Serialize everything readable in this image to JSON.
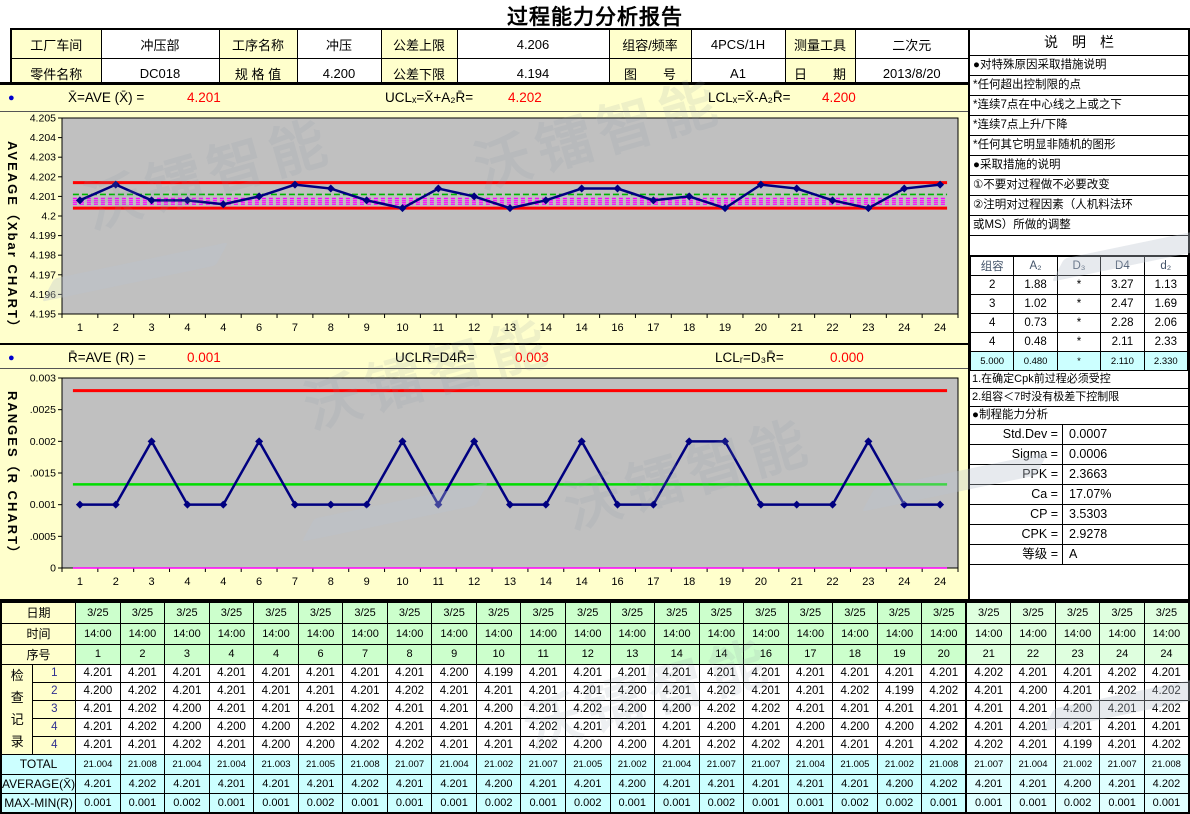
{
  "header": {
    "title": "过程能力分析报告"
  },
  "info_table": {
    "rows": [
      [
        {
          "label": "工厂车间"
        },
        {
          "value": "冲压部"
        },
        {
          "label": "工序名称"
        },
        {
          "value": "冲压"
        },
        {
          "label": "公差上限"
        },
        {
          "value": "4.206"
        },
        {
          "label": "组容/频率"
        },
        {
          "value": "4PCS/1H"
        },
        {
          "label": "测量工具"
        },
        {
          "value": "二次元"
        }
      ],
      [
        {
          "label": "零件名称"
        },
        {
          "value": "DC018"
        },
        {
          "label": "规 格 值"
        },
        {
          "value": "4.200"
        },
        {
          "label": "公差下限"
        },
        {
          "value": "4.194"
        },
        {
          "label": "图　　号"
        },
        {
          "value": "A1"
        },
        {
          "label": "日　　期"
        },
        {
          "value": "2013/8/20"
        }
      ]
    ]
  },
  "xbar_section": {
    "stats": [
      {
        "label": "X̄=AVE (X̄) =",
        "value": "4.201"
      },
      {
        "label": "UCLₓ=X̄+A₂R̄=",
        "value": "4.202"
      },
      {
        "label": "LCLₓ=X̄-A₂R̄=",
        "value": "4.200"
      }
    ]
  },
  "r_section": {
    "stats": [
      {
        "label": "R̄=AVE (R) =",
        "value": "0.001"
      },
      {
        "label": "UCLR=D4R̄=",
        "value": "0.003"
      },
      {
        "label": "LCLᵣ=D₃R̄=",
        "value": "0.000"
      }
    ]
  },
  "chart_data": [
    {
      "type": "line",
      "name": "xbar-control-chart",
      "ylabel": "AVEAGE（Xbar CHART）",
      "x_labels": [
        "1",
        "2",
        "3",
        "4",
        "4",
        "6",
        "7",
        "8",
        "9",
        "10",
        "11",
        "12",
        "13",
        "14",
        "14",
        "16",
        "17",
        "18",
        "19",
        "20",
        "21",
        "22",
        "23",
        "24",
        "24"
      ],
      "values": [
        4.2008,
        4.2016,
        4.2008,
        4.2008,
        4.2006,
        4.201,
        4.2016,
        4.2014,
        4.2008,
        4.2004,
        4.2014,
        4.201,
        4.2004,
        4.2008,
        4.2014,
        4.2014,
        4.2008,
        4.201,
        4.2004,
        4.2016,
        4.2014,
        4.2008,
        4.2004,
        4.2014,
        4.2016
      ],
      "ucl": 4.2017,
      "lcl": 4.2004,
      "center": 4.2011,
      "zone_lines": [
        4.2009,
        4.2008,
        4.2007,
        4.2006
      ],
      "center_dashed": true,
      "ylim": [
        4.195,
        4.205
      ],
      "y_ticks": [
        "4.205",
        "4.204",
        "4.203",
        "4.202",
        "4.201",
        "4.2",
        "4.199",
        "4.198",
        "4.197",
        "4.196",
        "4.195"
      ],
      "colors": {
        "series": "#000080",
        "limit": "#ff0000",
        "center": "#00b400",
        "zone": "#ff00ff",
        "plot_bg": "#c0c0c0"
      }
    },
    {
      "type": "line",
      "name": "r-control-chart",
      "ylabel": "RANGES（R CHART）",
      "x_labels": [
        "1",
        "2",
        "3",
        "4",
        "4",
        "6",
        "7",
        "8",
        "9",
        "10",
        "11",
        "12",
        "13",
        "14",
        "14",
        "16",
        "17",
        "18",
        "19",
        "20",
        "21",
        "22",
        "23",
        "24",
        "24"
      ],
      "values": [
        0.001,
        0.001,
        0.002,
        0.001,
        0.001,
        0.002,
        0.001,
        0.001,
        0.001,
        0.002,
        0.001,
        0.002,
        0.001,
        0.001,
        0.002,
        0.001,
        0.001,
        0.002,
        0.002,
        0.001,
        0.001,
        0.001,
        0.002,
        0.001,
        0.001
      ],
      "ucl": 0.0028,
      "lcl": 0,
      "center": 0.00132,
      "zone_lines": [],
      "center_dashed": false,
      "lcl_color": "#ff00ff",
      "ylim": [
        0,
        0.003
      ],
      "y_ticks": [
        "0.003",
        "0.0025",
        "0.002",
        "0.0015",
        "0.001",
        "0.0005",
        "0"
      ],
      "colors": {
        "series": "#000080",
        "limit": "#ff0000",
        "center": "#00dd00",
        "zone": "#ff00ff",
        "plot_bg": "#c0c0c0"
      }
    }
  ],
  "sidebar": {
    "header": "说　明　栏",
    "notes": [
      "●对特殊原因采取措施说明",
      "*任何超出控制限的点",
      "*连续7点在中心线之上或之下",
      "*连续7点上升/下降",
      "*任何其它明显非随机的图形",
      "●采取措施的说明",
      "①不要对过程做不必要改变",
      "②注明对过程因素（人机料法环",
      "或MS）所做的调整",
      ""
    ],
    "constants": {
      "headers": [
        "组容",
        "A₂",
        "D₃",
        "D4",
        "d₂"
      ],
      "rows": [
        [
          "2",
          "1.88",
          "*",
          "3.27",
          "1.13"
        ],
        [
          "3",
          "1.02",
          "*",
          "2.47",
          "1.69"
        ],
        [
          "4",
          "0.73",
          "*",
          "2.28",
          "2.06"
        ],
        [
          "4",
          "0.48",
          "*",
          "2.11",
          "2.33"
        ],
        [
          "5.000",
          "0.480",
          "*",
          "2.110",
          "2.330"
        ]
      ],
      "highlight_last_row": true
    },
    "cpk_notes": [
      "1.在确定Cpk前过程必须受控",
      "2.组容＜7时没有极差下控制限"
    ],
    "capability_header": "●制程能力分析",
    "capability": [
      {
        "label": "Std.Dev =",
        "value": "0.0007"
      },
      {
        "label": "Sigma =",
        "value": "0.0006"
      },
      {
        "label": "PPK =",
        "value": "2.3663"
      },
      {
        "label": "Ca =",
        "value": "17.07%"
      },
      {
        "label": "CP =",
        "value": "3.5303"
      },
      {
        "label": "CPK =",
        "value": "2.9278"
      },
      {
        "label": "等级 =",
        "value": "A"
      }
    ]
  },
  "bottom_table": {
    "row_labels": {
      "date": "日期",
      "time": "时间",
      "seq": "序号",
      "total": "TOTAL",
      "average": "AVERAGE(X̄)",
      "range": "MAX-MIN(R)",
      "record": "检查记录",
      "record_rows": [
        "1",
        "2",
        "3",
        "4",
        "4"
      ]
    },
    "dates": [
      "3/25",
      "3/25",
      "3/25",
      "3/25",
      "3/25",
      "3/25",
      "3/25",
      "3/25",
      "3/25",
      "3/25",
      "3/25",
      "3/25",
      "3/25",
      "3/25",
      "3/25",
      "3/25",
      "3/25",
      "3/25",
      "3/25",
      "3/25",
      "3/25",
      "3/25",
      "3/25",
      "3/25",
      "3/25"
    ],
    "times": [
      "14:00",
      "14:00",
      "14:00",
      "14:00",
      "14:00",
      "14:00",
      "14:00",
      "14:00",
      "14:00",
      "14:00",
      "14:00",
      "14:00",
      "14:00",
      "14:00",
      "14:00",
      "14:00",
      "14:00",
      "14:00",
      "14:00",
      "14:00",
      "14:00",
      "14:00",
      "14:00",
      "14:00",
      "14:00"
    ],
    "seq": [
      "1",
      "2",
      "3",
      "4",
      "4",
      "6",
      "7",
      "8",
      "9",
      "10",
      "11",
      "12",
      "13",
      "14",
      "14",
      "16",
      "17",
      "18",
      "19",
      "20",
      "21",
      "22",
      "23",
      "24",
      "24"
    ],
    "measurements": [
      [
        "4.201",
        "4.201",
        "4.201",
        "4.201",
        "4.201",
        "4.201",
        "4.201",
        "4.201",
        "4.200",
        "4.199",
        "4.201",
        "4.201",
        "4.201",
        "4.201",
        "4.201",
        "4.201",
        "4.201",
        "4.201",
        "4.201",
        "4.201",
        "4.202",
        "4.201",
        "4.201",
        "4.202",
        "4.201"
      ],
      [
        "4.200",
        "4.202",
        "4.201",
        "4.201",
        "4.201",
        "4.201",
        "4.201",
        "4.202",
        "4.201",
        "4.201",
        "4.201",
        "4.201",
        "4.200",
        "4.201",
        "4.202",
        "4.201",
        "4.201",
        "4.202",
        "4.199",
        "4.202",
        "4.201",
        "4.200",
        "4.201",
        "4.202",
        "4.202"
      ],
      [
        "4.201",
        "4.202",
        "4.200",
        "4.201",
        "4.201",
        "4.201",
        "4.202",
        "4.201",
        "4.201",
        "4.200",
        "4.201",
        "4.202",
        "4.200",
        "4.200",
        "4.202",
        "4.202",
        "4.201",
        "4.201",
        "4.201",
        "4.201",
        "4.201",
        "4.201",
        "4.200",
        "4.201",
        "4.202"
      ],
      [
        "4.201",
        "4.202",
        "4.200",
        "4.200",
        "4.200",
        "4.202",
        "4.202",
        "4.201",
        "4.201",
        "4.201",
        "4.202",
        "4.201",
        "4.201",
        "4.201",
        "4.200",
        "4.201",
        "4.200",
        "4.200",
        "4.200",
        "4.202",
        "4.201",
        "4.201",
        "4.201",
        "4.201",
        "4.201"
      ],
      [
        "4.201",
        "4.201",
        "4.202",
        "4.201",
        "4.200",
        "4.200",
        "4.202",
        "4.202",
        "4.201",
        "4.201",
        "4.202",
        "4.200",
        "4.200",
        "4.201",
        "4.202",
        "4.202",
        "4.201",
        "4.201",
        "4.201",
        "4.202",
        "4.202",
        "4.201",
        "4.199",
        "4.201",
        "4.202"
      ]
    ],
    "totals": [
      "21.004",
      "21.008",
      "21.004",
      "21.004",
      "21.003",
      "21.005",
      "21.008",
      "21.007",
      "21.004",
      "21.002",
      "21.007",
      "21.005",
      "21.002",
      "21.004",
      "21.007",
      "21.007",
      "21.004",
      "21.005",
      "21.002",
      "21.008",
      "21.007",
      "21.004",
      "21.002",
      "21.007",
      "21.008"
    ],
    "averages": [
      "4.201",
      "4.202",
      "4.201",
      "4.201",
      "4.201",
      "4.201",
      "4.202",
      "4.201",
      "4.201",
      "4.200",
      "4.201",
      "4.201",
      "4.200",
      "4.201",
      "4.201",
      "4.201",
      "4.201",
      "4.201",
      "4.200",
      "4.202",
      "4.201",
      "4.201",
      "4.200",
      "4.201",
      "4.202"
    ],
    "ranges": [
      "0.001",
      "0.001",
      "0.002",
      "0.001",
      "0.001",
      "0.002",
      "0.001",
      "0.001",
      "0.001",
      "0.002",
      "0.001",
      "0.002",
      "0.001",
      "0.001",
      "0.002",
      "0.001",
      "0.001",
      "0.002",
      "0.002",
      "0.001",
      "0.001",
      "0.001",
      "0.002",
      "0.001",
      "0.001"
    ]
  },
  "watermark": {
    "text": "沃镭智能"
  },
  "colors": {
    "label_bg": "#ffffcc",
    "header_green": "#ccffcc",
    "summary_cyan": "#ccffff",
    "accent_red": "#ff0000",
    "series_navy": "#000080"
  }
}
